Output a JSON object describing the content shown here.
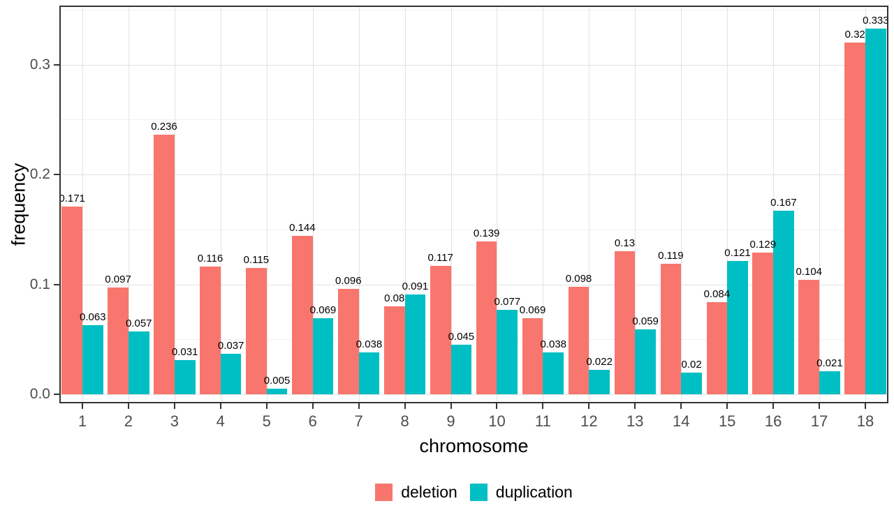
{
  "chart_data": {
    "type": "bar",
    "title": "",
    "xlabel": "chromosome",
    "ylabel": "frequency",
    "categories": [
      "1",
      "2",
      "3",
      "4",
      "5",
      "6",
      "7",
      "8",
      "9",
      "10",
      "11",
      "12",
      "13",
      "14",
      "15",
      "16",
      "17",
      "18"
    ],
    "series": [
      {
        "name": "deletion",
        "color": "#F8766D",
        "values": [
          0.171,
          0.097,
          0.236,
          0.116,
          0.115,
          0.144,
          0.096,
          0.08,
          0.117,
          0.139,
          0.069,
          0.098,
          0.13,
          0.119,
          0.084,
          0.129,
          0.104,
          0.32
        ]
      },
      {
        "name": "duplication",
        "color": "#00BFC4",
        "values": [
          0.063,
          0.057,
          0.031,
          0.037,
          0.005,
          0.069,
          0.038,
          0.091,
          0.045,
          0.077,
          0.038,
          0.022,
          0.059,
          0.02,
          0.121,
          0.167,
          0.021,
          0.333
        ]
      }
    ],
    "bar_value_labels": true,
    "y_ticks": [
      "0.0",
      "0.1",
      "0.2",
      "0.3"
    ],
    "y_minor_gridlines": [
      0.05,
      0.15,
      0.25,
      0.35
    ],
    "ylim": [
      0,
      0.354
    ],
    "grid": "major-and-minor",
    "legend_position": "bottom-center"
  },
  "colors": {
    "grid_major": "#E2E2E2",
    "grid_minor": "#F0F0F0",
    "panel_border": "#333333",
    "axis_text": "#4D4D4D",
    "label_text": "#000000",
    "background": "#FFFFFF"
  }
}
